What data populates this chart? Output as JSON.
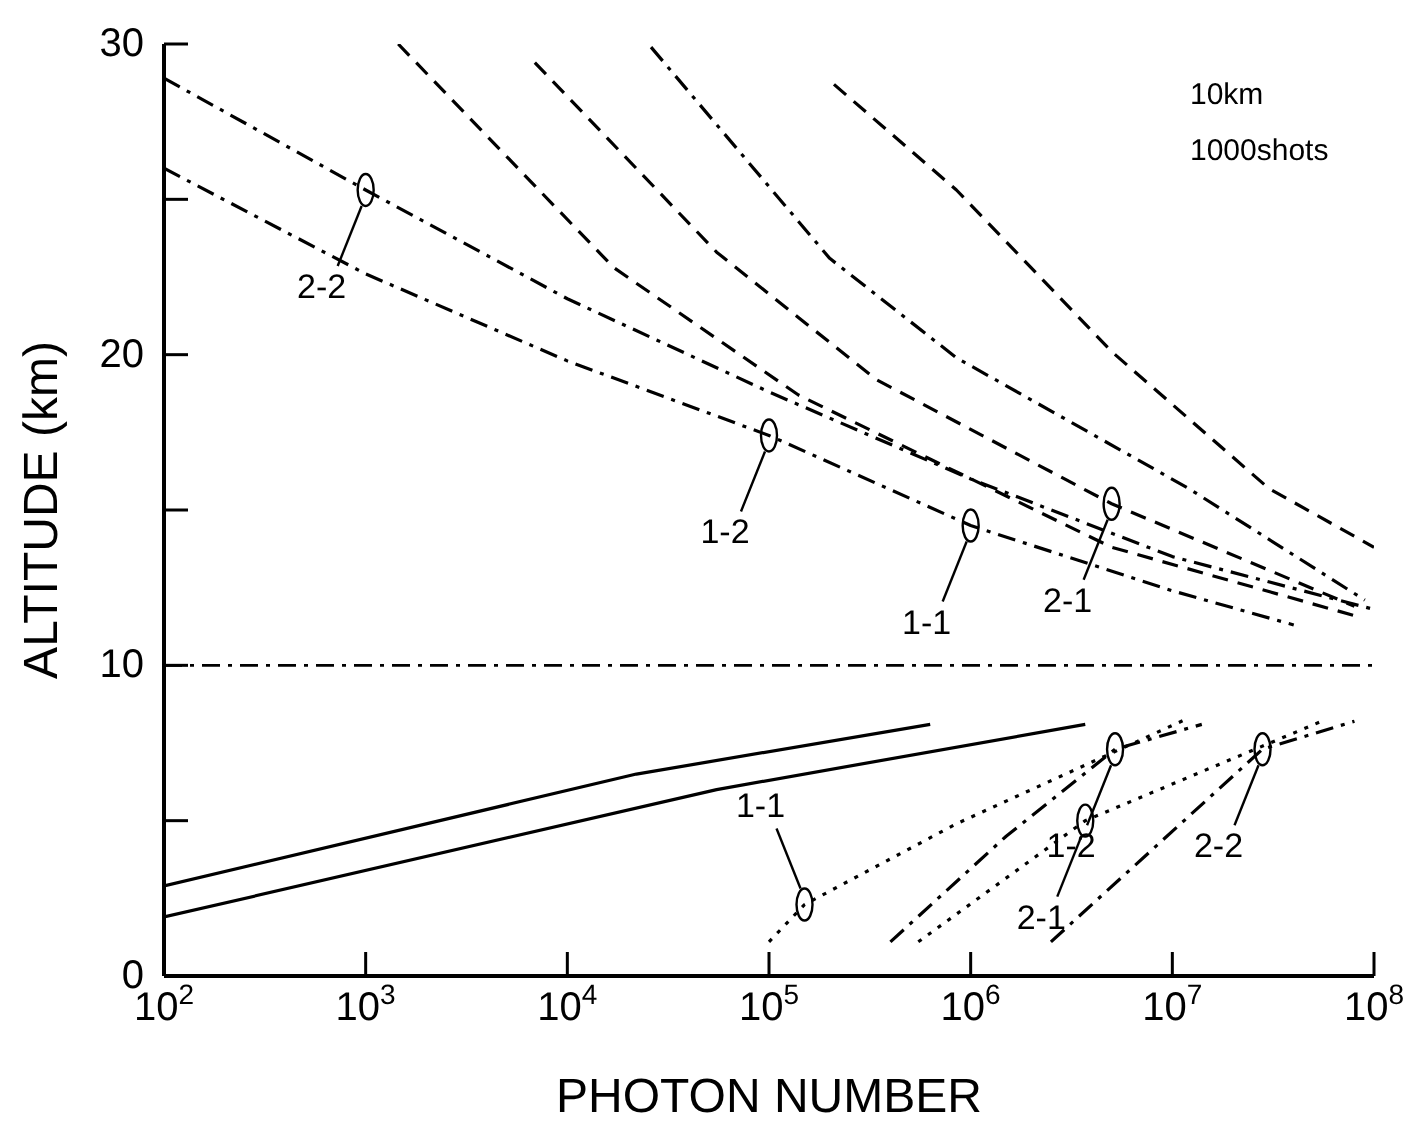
{
  "chart_data": {
    "type": "line",
    "xlabel": "PHOTON NUMBER",
    "ylabel": "ALTITUDE (km)",
    "log": "x",
    "xlim": [
      100,
      100000000
    ],
    "ylim": [
      0,
      30
    ],
    "xticks": [
      {
        "value": 100,
        "label": "10$^{2}$"
      },
      {
        "value": 1000,
        "label": "10$^{3}$"
      },
      {
        "value": 10000,
        "label": "10$^{4}$"
      },
      {
        "value": 100000,
        "label": "10$^{5}$"
      },
      {
        "value": 1000000,
        "label": "10$^{6}$"
      },
      {
        "value": 10000000,
        "label": "10$^{7}$"
      },
      {
        "value": 100000000,
        "label": "10$^{8}$"
      }
    ],
    "yticks": [
      0,
      {
        "value": 5,
        "label": null
      },
      10,
      {
        "value": 15,
        "label": null
      },
      20,
      {
        "value": 25,
        "label": null
      },
      30
    ],
    "marker": "none",
    "series": [
      {
        "color": "#000000",
        "line_style": "dashdot",
        "x": [
          100,
          1000,
          10000,
          100000,
          1000000,
          10000000,
          40000000
        ],
        "values": [
          26.0,
          22.6,
          19.8,
          17.4,
          14.5,
          12.4,
          11.3
        ]
      },
      {
        "color": "#000000",
        "line_style": "dashdot",
        "x": [
          100,
          1000,
          10000,
          100000,
          1000000,
          10000000,
          100000000
        ],
        "values": [
          28.9,
          25.3,
          21.8,
          18.8,
          16.0,
          13.5,
          11.8
        ]
      },
      {
        "color": "#000000",
        "line_style": "dashed",
        "x": [
          1450,
          17000,
          140000,
          5000000,
          80000000
        ],
        "values": [
          30,
          22.8,
          18.7,
          13.8,
          11.6
        ]
      },
      {
        "color": "#000000",
        "line_style": "dashed",
        "x": [
          6900,
          55000,
          340000,
          5000000,
          80000000
        ],
        "values": [
          29.4,
          23.3,
          19.2,
          15.2,
          11.9
        ]
      },
      {
        "color": "#000000",
        "line_style": "dashdot",
        "x": [
          26000,
          200000,
          850000,
          12000000,
          90000000
        ],
        "values": [
          29.9,
          23.1,
          19.9,
          15.7,
          12.1
        ]
      },
      {
        "color": "#000000",
        "line_style": "dashed",
        "x": [
          210000,
          850000,
          5000000,
          30000000,
          100000000
        ],
        "values": [
          28.7,
          25.3,
          20.1,
          15.7,
          13.8
        ]
      },
      {
        "color": "#000000",
        "line_style": "solid",
        "x": [
          100,
          22000,
          630000
        ],
        "values": [
          2.9,
          6.5,
          8.1
        ]
      },
      {
        "color": "#000000",
        "line_style": "solid",
        "x": [
          100,
          55000,
          3700000
        ],
        "values": [
          1.9,
          6.0,
          8.1
        ]
      },
      {
        "color": "#000000",
        "line_style": "dotted",
        "x": [
          100000,
          150000,
          850000,
          12000000
        ],
        "values": [
          1.1,
          2.3,
          4.9,
          8.3
        ]
      },
      {
        "color": "#000000",
        "line_style": "dashdot",
        "x": [
          400000,
          1500000,
          5200000,
          14000000
        ],
        "values": [
          1.1,
          4.5,
          7.3,
          8.1
        ]
      },
      {
        "color": "#000000",
        "line_style": "dotted",
        "x": [
          550000,
          3700000,
          55000000
        ],
        "values": [
          1.1,
          5.0,
          8.2
        ]
      },
      {
        "color": "#000000",
        "line_style": "dashdot",
        "x": [
          2500000,
          28000000,
          80000000
        ],
        "values": [
          1.1,
          7.3,
          8.2
        ]
      }
    ],
    "ref_lines": [
      {
        "axis": "y",
        "value": 10,
        "line_style": "dashdot",
        "color": "#000000"
      }
    ],
    "annotations": [
      "10km",
      "1000shots",
      {
        "text": "2-2",
        "x": 1000,
        "y": 25.3
      },
      {
        "text": "1-2",
        "x": 100000,
        "y": 17.4
      },
      {
        "text": "2-1",
        "x": 5000000,
        "y": 15.2
      },
      {
        "text": "1-1",
        "x": 1000000,
        "y": 14.5
      },
      {
        "text": "1-1",
        "x": 150000,
        "y": 2.3
      },
      {
        "text": "1-2",
        "x": 5200000,
        "y": 7.3
      },
      {
        "text": "2-1",
        "x": 3700000,
        "y": 5.0
      },
      {
        "text": "2-2",
        "x": 28000000,
        "y": 7.3
      }
    ]
  }
}
